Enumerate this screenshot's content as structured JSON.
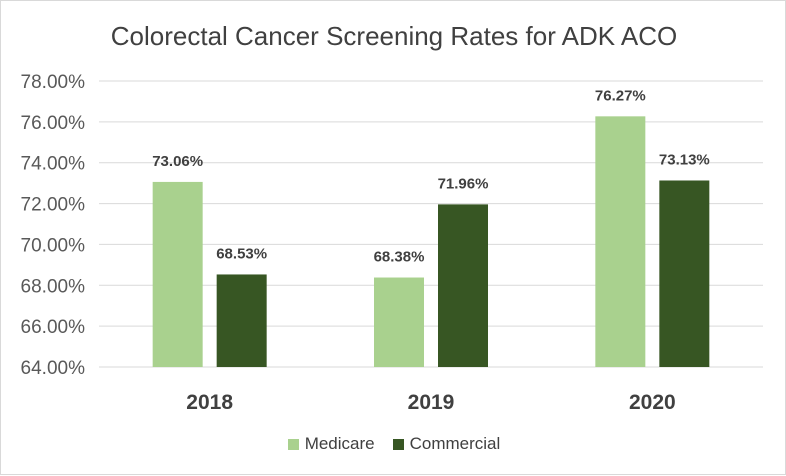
{
  "chart_data": {
    "type": "bar",
    "title": "Colorectal Cancer Screening Rates for ADK ACO",
    "categories": [
      "2018",
      "2019",
      "2020"
    ],
    "series": [
      {
        "name": "Medicare",
        "values": [
          73.06,
          68.38,
          76.27
        ],
        "labels": [
          "73.06%",
          "68.38%",
          "76.27%"
        ],
        "color": "#a9d18e"
      },
      {
        "name": "Commercial",
        "values": [
          68.53,
          71.96,
          73.13
        ],
        "labels": [
          "68.53%",
          "71.96%",
          "73.13%"
        ],
        "color": "#375623"
      }
    ],
    "ylim": [
      64,
      78
    ],
    "yticks": [
      "64.00%",
      "66.00%",
      "68.00%",
      "70.00%",
      "72.00%",
      "74.00%",
      "76.00%",
      "78.00%"
    ],
    "grid": true,
    "legend_position": "bottom"
  }
}
